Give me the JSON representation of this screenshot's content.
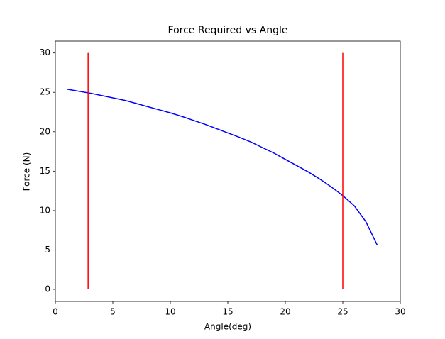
{
  "chart_data": {
    "type": "line",
    "title": "Force Required vs Angle",
    "x_label": "Angle(deg)",
    "y_label": "Force (N)",
    "xlim": [
      0,
      30
    ],
    "ylim": [
      -1.53,
      31.5
    ],
    "xticks": [
      0,
      5,
      10,
      15,
      20,
      25,
      30
    ],
    "yticks": [
      0,
      5,
      10,
      15,
      20,
      25,
      30
    ],
    "series": [
      {
        "color": "#0000ff",
        "x": [
          1,
          2,
          3,
          4,
          5,
          6,
          7,
          8,
          9,
          10,
          11,
          12,
          13,
          14,
          15,
          16,
          17,
          18,
          19,
          20,
          21,
          22,
          23,
          24,
          25,
          26,
          27,
          28
        ],
        "values": [
          25.4,
          25.15,
          24.9,
          24.6,
          24.3,
          24.0,
          23.6,
          23.2,
          22.8,
          22.4,
          21.95,
          21.45,
          20.95,
          20.4,
          19.85,
          19.3,
          18.7,
          18.0,
          17.3,
          16.5,
          15.7,
          14.9,
          14.0,
          13.0,
          11.9,
          10.6,
          8.6,
          5.6
        ]
      },
      {
        "color": "#ff0000",
        "x": [
          2.85,
          2.85
        ],
        "values": [
          0,
          30
        ]
      },
      {
        "color": "#ff0000",
        "x": [
          25,
          25
        ],
        "values": [
          0,
          30
        ]
      }
    ]
  }
}
